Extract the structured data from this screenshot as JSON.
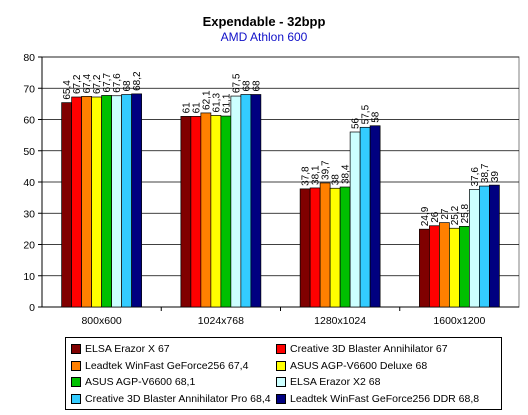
{
  "chart_data": {
    "type": "bar",
    "title": "Expendable - 32bpp",
    "subtitle": "AMD Athlon 600",
    "categories": [
      "800x600",
      "1024x768",
      "1280x1024",
      "1600x1200"
    ],
    "ylim": [
      0,
      80
    ],
    "yticks": [
      "0",
      "10",
      "20",
      "30",
      "40",
      "50",
      "60",
      "70",
      "80"
    ],
    "grid": true,
    "legend_position": "bottom",
    "series": [
      {
        "name": "ELSA Erazor X 67",
        "color": "#800000",
        "values": [
          65.4,
          61,
          37.8,
          24.9
        ],
        "labels": [
          "65,4",
          "61",
          "37,8",
          "24,9"
        ]
      },
      {
        "name": "Creative 3D Blaster Annihilator 67",
        "color": "#ff0000",
        "values": [
          67.2,
          61,
          38.1,
          26
        ],
        "labels": [
          "67,2",
          "61",
          "38,1",
          "26"
        ]
      },
      {
        "name": "Leadtek WinFast GeForce256 67,4",
        "color": "#ff8000",
        "values": [
          67.4,
          62.1,
          39.7,
          27
        ],
        "labels": [
          "67,4",
          "62,1",
          "39,7",
          "27"
        ]
      },
      {
        "name": "ASUS AGP-V6600 Deluxe 68",
        "color": "#ffff00",
        "values": [
          67.2,
          61.3,
          38,
          25.2
        ],
        "labels": [
          "67,2",
          "61,3",
          "38",
          "25,2"
        ]
      },
      {
        "name": "ASUS AGP-V6600 68,1",
        "color": "#00c000",
        "values": [
          67.7,
          61.1,
          38.4,
          25.8
        ],
        "labels": [
          "67,7",
          "61,1",
          "38,4",
          "25,8"
        ]
      },
      {
        "name": "ELSA Erazor X2 68",
        "color": "#ccffff",
        "values": [
          67.6,
          67.5,
          56,
          37.6
        ],
        "labels": [
          "67,6",
          "67,5",
          "56",
          "37,6"
        ]
      },
      {
        "name": "Creative 3D Blaster Annihilator Pro 68,4",
        "color": "#33ccff",
        "values": [
          68,
          68,
          57.5,
          38.7
        ],
        "labels": [
          "68",
          "68",
          "57,5",
          "38,7"
        ]
      },
      {
        "name": "Leadtek WinFast GeForce256 DDR 68,8",
        "color": "#000080",
        "values": [
          68.2,
          68,
          58,
          39
        ],
        "labels": [
          "68,2",
          "68",
          "58",
          "39"
        ]
      }
    ]
  }
}
